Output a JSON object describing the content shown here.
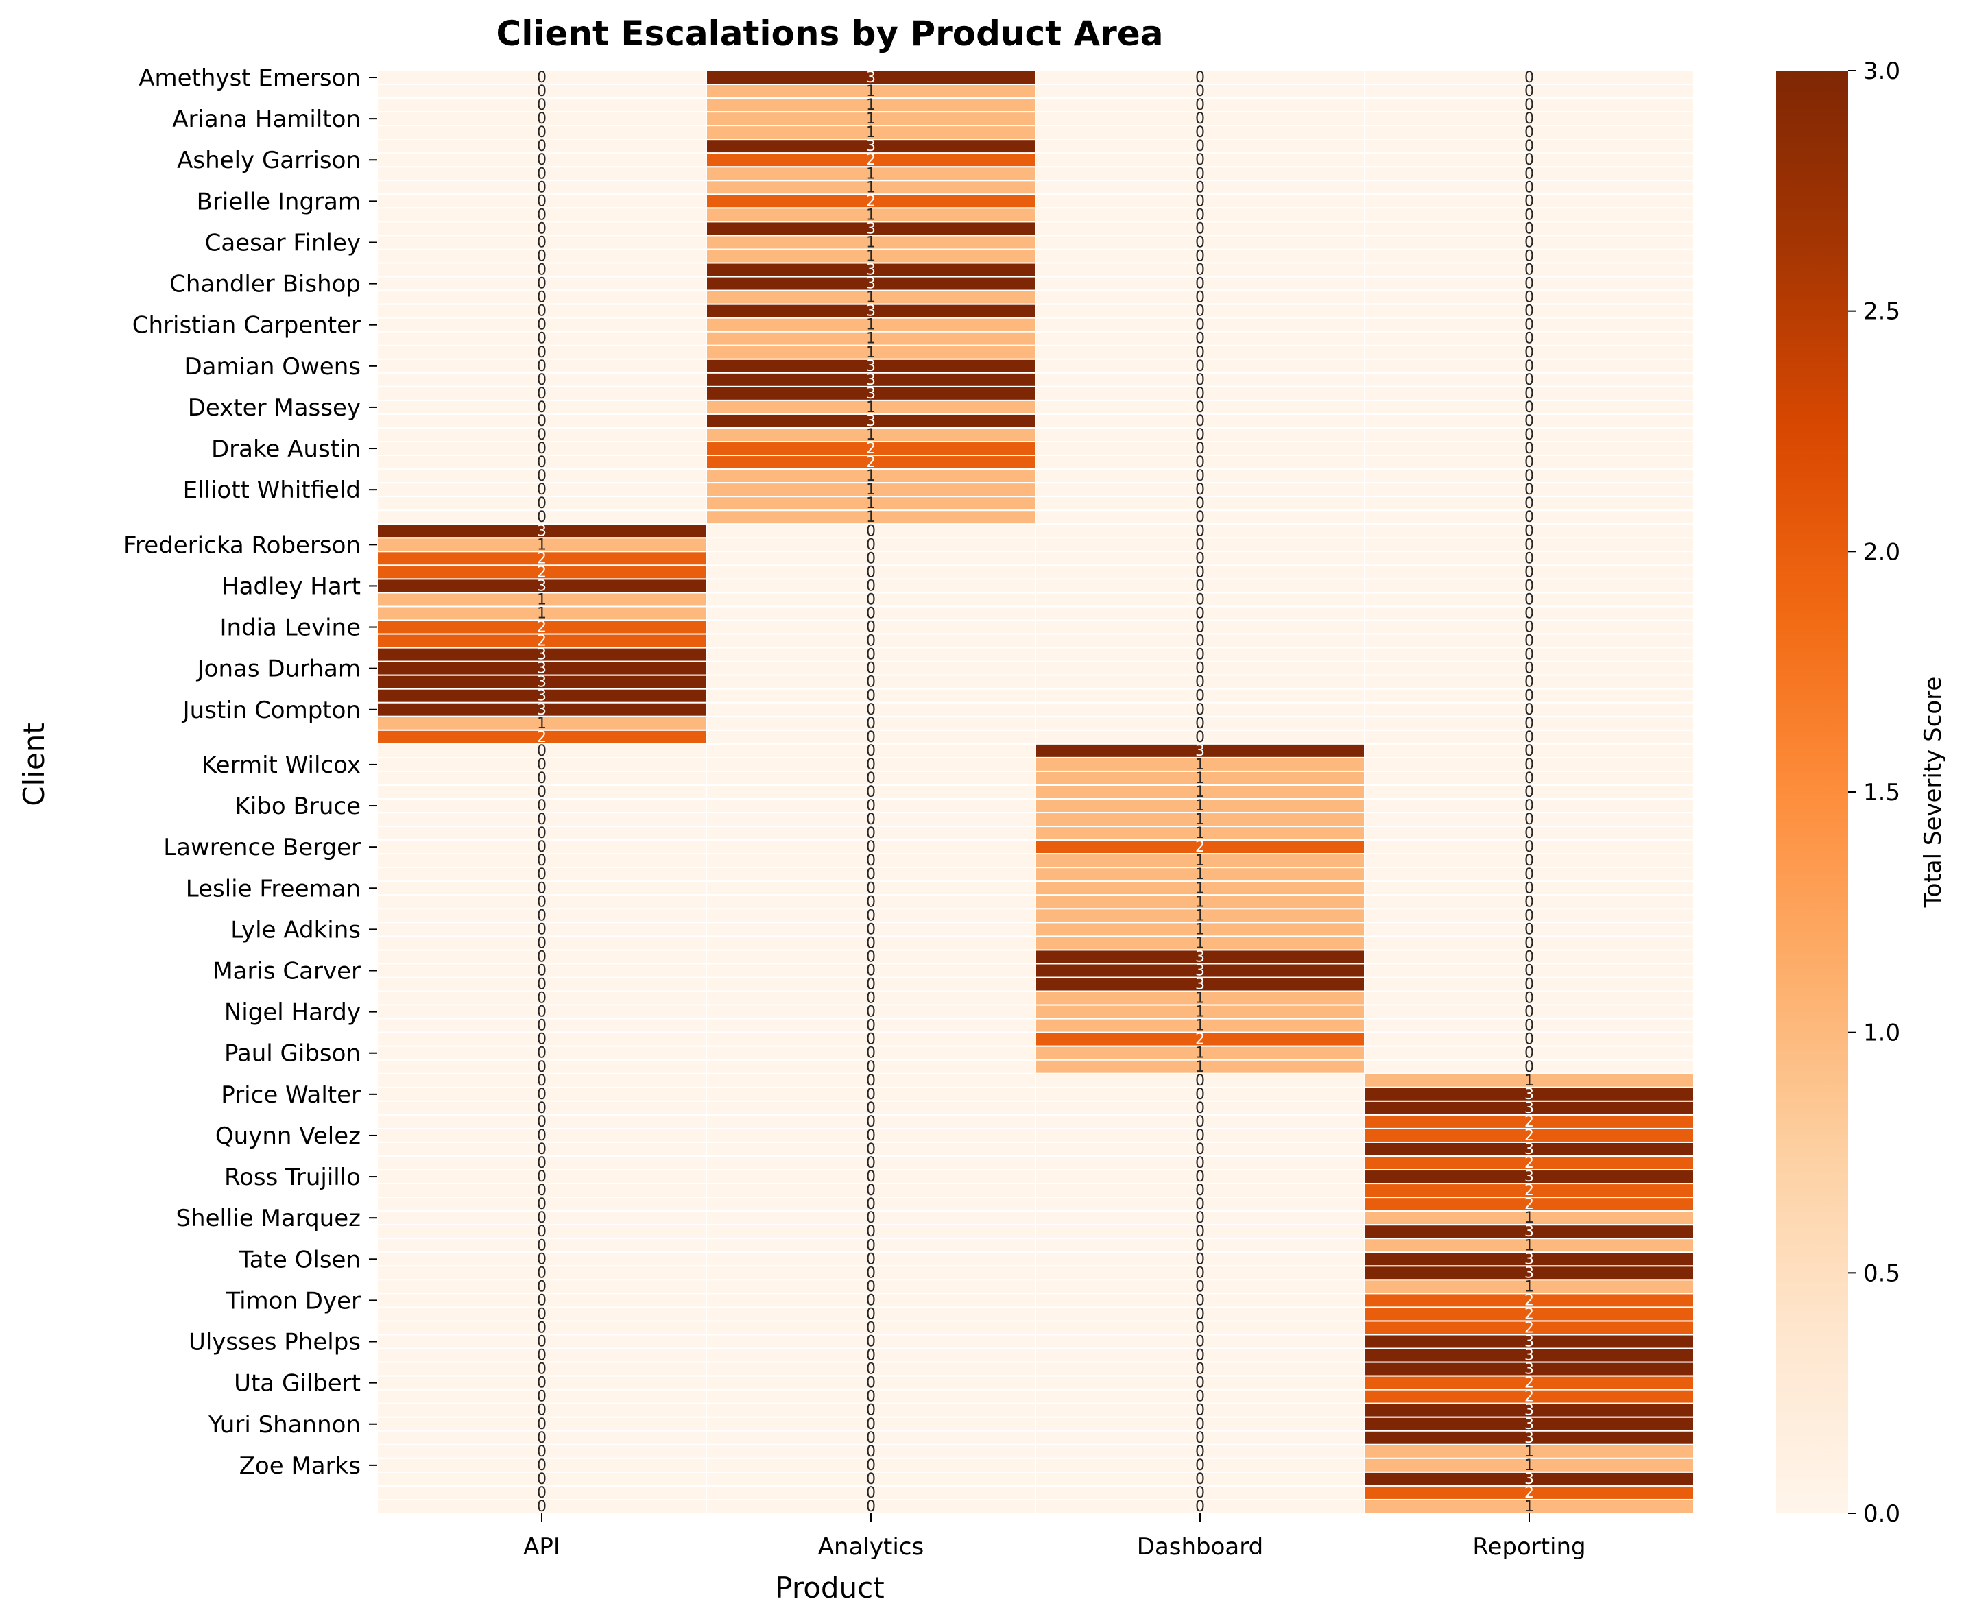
{
  "chart_data": {
    "type": "heatmap",
    "title": "Client Escalations by Product Area",
    "xlabel": "Product",
    "ylabel": "Client",
    "colorbar_label": "Total Severity Score",
    "colorbar_range": [
      0,
      3
    ],
    "colorbar_ticks": [
      "0.0",
      "0.5",
      "1.0",
      "1.5",
      "2.0",
      "2.5",
      "3.0"
    ],
    "colormap": "Oranges",
    "grid": "white cell borders",
    "products": [
      "API",
      "Analytics",
      "Dashboard",
      "Reporting"
    ],
    "y_tick_labels": [
      "Amethyst Emerson",
      "Ariana Hamilton",
      "Ashely Garrison",
      "Brielle Ingram",
      "Caesar Finley",
      "Chandler Bishop",
      "Christian Carpenter",
      "Damian Owens",
      "Dexter Massey",
      "Drake Austin",
      "Elliott Whitfield",
      "Fredericka Roberson",
      "Hadley Hart",
      "India Levine",
      "Jonas Durham",
      "Justin Compton",
      "Kermit Wilcox",
      "Kibo Bruce",
      "Lawrence Berger",
      "Leslie Freeman",
      "Lyle Adkins",
      "Maris Carver",
      "Nigel Hardy",
      "Paul Gibson",
      "Price Walter",
      "Quynn Velez",
      "Ross Trujillo",
      "Shellie Marquez",
      "Tate Olsen",
      "Timon Dyer",
      "Ulysses Phelps",
      "Uta Gilbert",
      "Yuri Shannon",
      "Zoe Marks"
    ],
    "row_count": 105,
    "labeled_row_indices": [
      0,
      3,
      6,
      9,
      12,
      15,
      18,
      21,
      24,
      27,
      30,
      34,
      37,
      40,
      43,
      46,
      50,
      53,
      56,
      59,
      62,
      65,
      68,
      71,
      74,
      77,
      80,
      83,
      86,
      89,
      92,
      95,
      98,
      101
    ],
    "product_segments": [
      {
        "product": "Analytics",
        "values": [
          3,
          1,
          1,
          1,
          1,
          3,
          2,
          1,
          1,
          2,
          1,
          3,
          1,
          1,
          3,
          3,
          1,
          3,
          1,
          1,
          1,
          3,
          3,
          3,
          1,
          3,
          1,
          2,
          2,
          1,
          1,
          1,
          1
        ]
      },
      {
        "product": "API",
        "values": [
          3,
          1,
          2,
          2,
          3,
          1,
          1,
          2,
          2,
          3,
          3,
          3,
          3,
          3,
          1,
          2
        ]
      },
      {
        "product": "Dashboard",
        "values": [
          3,
          1,
          1,
          1,
          1,
          1,
          1,
          2,
          1,
          1,
          1,
          1,
          1,
          1,
          1,
          3,
          3,
          3,
          1,
          1,
          1,
          2,
          1,
          1
        ]
      },
      {
        "product": "Reporting",
        "values": [
          1,
          3,
          3,
          2,
          2,
          3,
          2,
          3,
          2,
          2,
          1,
          3,
          1,
          3,
          3,
          1,
          2,
          2,
          2,
          3,
          3,
          3,
          2,
          2,
          3,
          3,
          3,
          1,
          1,
          3,
          2,
          1,
          2
        ]
      }
    ]
  }
}
